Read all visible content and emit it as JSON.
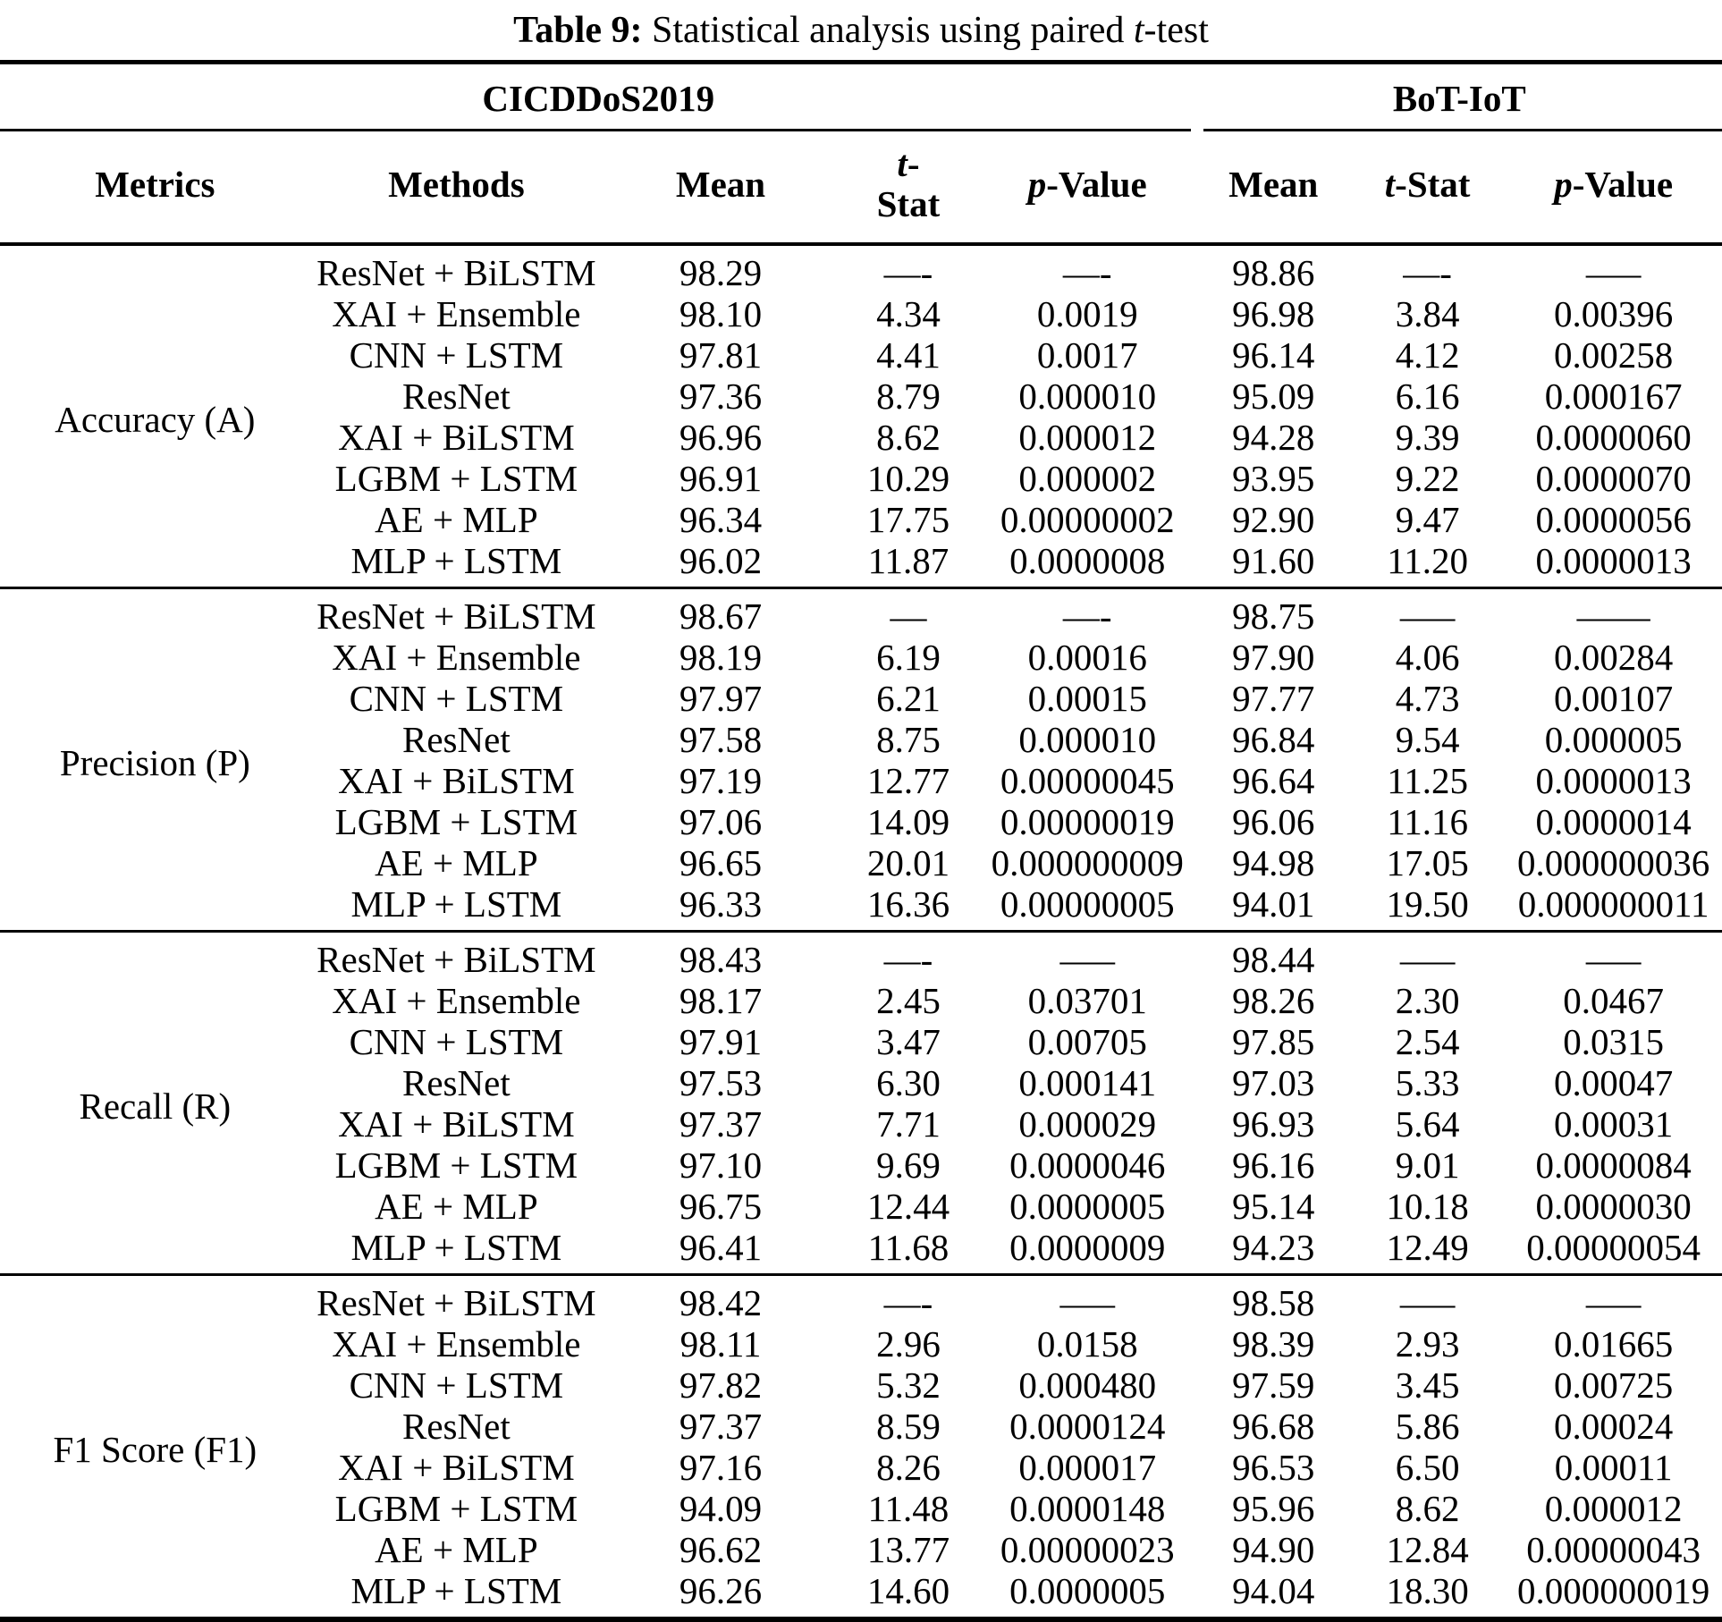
{
  "title": {
    "prefix": "Table 9:",
    "body": " Statistical analysis using paired ",
    "italic": "t",
    "suffix": "-test"
  },
  "groups": {
    "cic": "CICDDoS2019",
    "bot": "BoT-IoT"
  },
  "headers": {
    "metrics": "Metrics",
    "methods": "Methods",
    "mean": "Mean",
    "t_italic": "t",
    "t_cic_rest": "-",
    "t_cic_line2": "Stat",
    "t_bot_rest": "-Stat",
    "p_italic": "p",
    "p_rest": "-Value"
  },
  "colors": {
    "text": "#000000",
    "background": "#ffffff",
    "rule": "#000000"
  },
  "sections": [
    {
      "metric": "Accuracy (A)",
      "rows": [
        {
          "method": "ResNet + BiLSTM",
          "cic": {
            "mean": "98.29",
            "t": "—-",
            "p": "—-"
          },
          "bot": {
            "mean": "98.86",
            "t": "—-",
            "p": "—–"
          }
        },
        {
          "method": "XAI + Ensemble",
          "cic": {
            "mean": "98.10",
            "t": "4.34",
            "p": "0.0019"
          },
          "bot": {
            "mean": "96.98",
            "t": "3.84",
            "p": "0.00396"
          }
        },
        {
          "method": "CNN + LSTM",
          "cic": {
            "mean": "97.81",
            "t": "4.41",
            "p": "0.0017"
          },
          "bot": {
            "mean": "96.14",
            "t": "4.12",
            "p": "0.00258"
          }
        },
        {
          "method": "ResNet",
          "cic": {
            "mean": "97.36",
            "t": "8.79",
            "p": "0.000010"
          },
          "bot": {
            "mean": "95.09",
            "t": "6.16",
            "p": "0.000167"
          }
        },
        {
          "method": "XAI + BiLSTM",
          "cic": {
            "mean": "96.96",
            "t": "8.62",
            "p": "0.000012"
          },
          "bot": {
            "mean": "94.28",
            "t": "9.39",
            "p": "0.0000060"
          }
        },
        {
          "method": "LGBM + LSTM",
          "cic": {
            "mean": "96.91",
            "t": "10.29",
            "p": "0.000002"
          },
          "bot": {
            "mean": "93.95",
            "t": "9.22",
            "p": "0.0000070"
          }
        },
        {
          "method": "AE + MLP",
          "cic": {
            "mean": "96.34",
            "t": "17.75",
            "p": "0.00000002"
          },
          "bot": {
            "mean": "92.90",
            "t": "9.47",
            "p": "0.0000056"
          }
        },
        {
          "method": "MLP + LSTM",
          "cic": {
            "mean": "96.02",
            "t": "11.87",
            "p": "0.0000008"
          },
          "bot": {
            "mean": "91.60",
            "t": "11.20",
            "p": "0.0000013"
          }
        }
      ]
    },
    {
      "metric": "Precision (P)",
      "rows": [
        {
          "method": "ResNet + BiLSTM",
          "cic": {
            "mean": "98.67",
            "t": "—",
            "p": "—-"
          },
          "bot": {
            "mean": "98.75",
            "t": "—–",
            "p": "——"
          }
        },
        {
          "method": "XAI + Ensemble",
          "cic": {
            "mean": "98.19",
            "t": "6.19",
            "p": "0.00016"
          },
          "bot": {
            "mean": "97.90",
            "t": "4.06",
            "p": "0.00284"
          }
        },
        {
          "method": "CNN + LSTM",
          "cic": {
            "mean": "97.97",
            "t": "6.21",
            "p": "0.00015"
          },
          "bot": {
            "mean": "97.77",
            "t": "4.73",
            "p": "0.00107"
          }
        },
        {
          "method": "ResNet",
          "cic": {
            "mean": "97.58",
            "t": "8.75",
            "p": "0.000010"
          },
          "bot": {
            "mean": "96.84",
            "t": "9.54",
            "p": "0.000005"
          }
        },
        {
          "method": "XAI + BiLSTM",
          "cic": {
            "mean": "97.19",
            "t": "12.77",
            "p": "0.00000045"
          },
          "bot": {
            "mean": "96.64",
            "t": "11.25",
            "p": "0.0000013"
          }
        },
        {
          "method": "LGBM + LSTM",
          "cic": {
            "mean": "97.06",
            "t": "14.09",
            "p": "0.00000019"
          },
          "bot": {
            "mean": "96.06",
            "t": "11.16",
            "p": "0.0000014"
          }
        },
        {
          "method": "AE + MLP",
          "cic": {
            "mean": "96.65",
            "t": "20.01",
            "p": "0.000000009"
          },
          "bot": {
            "mean": "94.98",
            "t": "17.05",
            "p": "0.000000036"
          }
        },
        {
          "method": "MLP + LSTM",
          "cic": {
            "mean": "96.33",
            "t": "16.36",
            "p": "0.00000005"
          },
          "bot": {
            "mean": "94.01",
            "t": "19.50",
            "p": "0.000000011"
          }
        }
      ]
    },
    {
      "metric": "Recall (R)",
      "rows": [
        {
          "method": "ResNet + BiLSTM",
          "cic": {
            "mean": "98.43",
            "t": "—-",
            "p": "—–"
          },
          "bot": {
            "mean": "98.44",
            "t": "—–",
            "p": "—–"
          }
        },
        {
          "method": "XAI + Ensemble",
          "cic": {
            "mean": "98.17",
            "t": "2.45",
            "p": "0.03701"
          },
          "bot": {
            "mean": "98.26",
            "t": "2.30",
            "p": "0.0467"
          }
        },
        {
          "method": "CNN + LSTM",
          "cic": {
            "mean": "97.91",
            "t": "3.47",
            "p": "0.00705"
          },
          "bot": {
            "mean": "97.85",
            "t": "2.54",
            "p": "0.0315"
          }
        },
        {
          "method": "ResNet",
          "cic": {
            "mean": "97.53",
            "t": "6.30",
            "p": "0.000141"
          },
          "bot": {
            "mean": "97.03",
            "t": "5.33",
            "p": "0.00047"
          }
        },
        {
          "method": "XAI + BiLSTM",
          "cic": {
            "mean": "97.37",
            "t": "7.71",
            "p": "0.000029"
          },
          "bot": {
            "mean": "96.93",
            "t": "5.64",
            "p": "0.00031"
          }
        },
        {
          "method": "LGBM + LSTM",
          "cic": {
            "mean": "97.10",
            "t": "9.69",
            "p": "0.0000046"
          },
          "bot": {
            "mean": "96.16",
            "t": "9.01",
            "p": "0.0000084"
          }
        },
        {
          "method": "AE + MLP",
          "cic": {
            "mean": "96.75",
            "t": "12.44",
            "p": "0.0000005"
          },
          "bot": {
            "mean": "95.14",
            "t": "10.18",
            "p": "0.0000030"
          }
        },
        {
          "method": "MLP + LSTM",
          "cic": {
            "mean": "96.41",
            "t": "11.68",
            "p": "0.0000009"
          },
          "bot": {
            "mean": "94.23",
            "t": "12.49",
            "p": "0.00000054"
          }
        }
      ]
    },
    {
      "metric": "F1 Score (F1)",
      "rows": [
        {
          "method": "ResNet + BiLSTM",
          "cic": {
            "mean": "98.42",
            "t": "—-",
            "p": "—–"
          },
          "bot": {
            "mean": "98.58",
            "t": "—–",
            "p": "—–"
          }
        },
        {
          "method": "XAI + Ensemble",
          "cic": {
            "mean": "98.11",
            "t": "2.96",
            "p": "0.0158"
          },
          "bot": {
            "mean": "98.39",
            "t": "2.93",
            "p": "0.01665"
          }
        },
        {
          "method": "CNN + LSTM",
          "cic": {
            "mean": "97.82",
            "t": "5.32",
            "p": "0.000480"
          },
          "bot": {
            "mean": "97.59",
            "t": "3.45",
            "p": "0.00725"
          }
        },
        {
          "method": "ResNet",
          "cic": {
            "mean": "97.37",
            "t": "8.59",
            "p": "0.0000124"
          },
          "bot": {
            "mean": "96.68",
            "t": "5.86",
            "p": "0.00024"
          }
        },
        {
          "method": "XAI + BiLSTM",
          "cic": {
            "mean": "97.16",
            "t": "8.26",
            "p": "0.000017"
          },
          "bot": {
            "mean": "96.53",
            "t": "6.50",
            "p": "0.00011"
          }
        },
        {
          "method": "LGBM + LSTM",
          "cic": {
            "mean": "94.09",
            "t": "11.48",
            "p": "0.0000148"
          },
          "bot": {
            "mean": "95.96",
            "t": "8.62",
            "p": "0.000012"
          }
        },
        {
          "method": "AE + MLP",
          "cic": {
            "mean": "96.62",
            "t": "13.77",
            "p": "0.00000023"
          },
          "bot": {
            "mean": "94.90",
            "t": "12.84",
            "p": "0.00000043"
          }
        },
        {
          "method": "MLP + LSTM",
          "cic": {
            "mean": "96.26",
            "t": "14.60",
            "p": "0.0000005"
          },
          "bot": {
            "mean": "94.04",
            "t": "18.30",
            "p": "0.000000019"
          }
        }
      ]
    }
  ]
}
